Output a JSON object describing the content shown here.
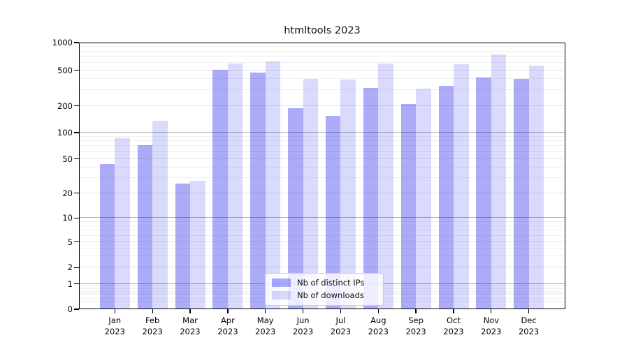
{
  "title": "htmltools 2023",
  "legend": {
    "series1": "Nb of distinct IPs",
    "series2": "Nb of downloads"
  },
  "colors": {
    "ips": "rgba(10,10,235,0.34)",
    "downloads": "rgba(10,10,235,0.15)",
    "grid_decade": "#b1b1b1",
    "grid_light": "#e4e4e8"
  },
  "y_axis": {
    "tick_labels": [
      "1000",
      "500",
      "200",
      "100",
      "50",
      "20",
      "10",
      "5",
      "2",
      "1",
      "0"
    ]
  },
  "x_axis": {
    "months": [
      "Jan",
      "Feb",
      "Mar",
      "Apr",
      "May",
      "Jun",
      "Jul",
      "Aug",
      "Sep",
      "Oct",
      "Nov",
      "Dec"
    ],
    "year": "2023"
  },
  "chart_data": {
    "type": "bar",
    "title": "htmltools 2023",
    "categories": [
      "Jan 2023",
      "Feb 2023",
      "Mar 2023",
      "Apr 2023",
      "May 2023",
      "Jun 2023",
      "Jul 2023",
      "Aug 2023",
      "Sep 2023",
      "Oct 2023",
      "Nov 2023",
      "Dec 2023"
    ],
    "series": [
      {
        "name": "Nb of distinct IPs",
        "values": [
          44,
          72,
          26,
          505,
          475,
          190,
          155,
          320,
          210,
          335,
          415,
          400
        ]
      },
      {
        "name": "Nb of downloads",
        "values": [
          87,
          135,
          28,
          595,
          620,
          400,
          395,
          590,
          310,
          580,
          750,
          565
        ]
      }
    ],
    "yscale": "symlog",
    "y_ticks": [
      0,
      1,
      2,
      5,
      10,
      20,
      50,
      100,
      200,
      500,
      1000
    ],
    "ylim": [
      0,
      1000
    ],
    "xlabel": "",
    "ylabel": "",
    "grid": true,
    "legend_position": "lower center"
  }
}
